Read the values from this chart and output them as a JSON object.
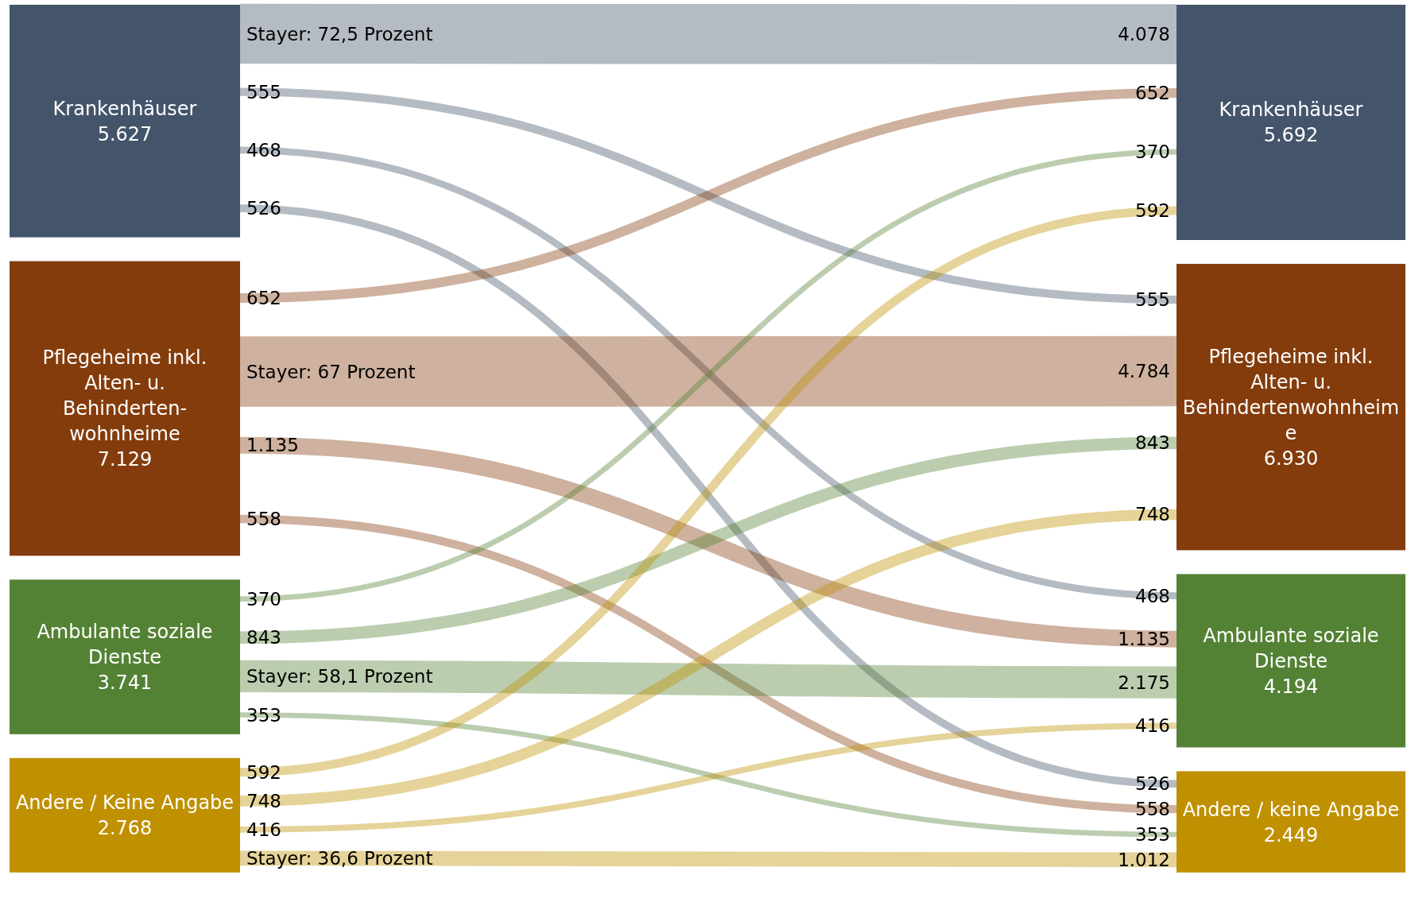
{
  "chart_data": {
    "type": "other",
    "categories": [
      "Krankenhäuser",
      "Pflegeheime inkl. Alten- u. Behindertenwohnheime",
      "Ambulante soziale Dienste",
      "Andere / keine Angabe"
    ],
    "series": [
      {
        "name": "Krankenhäuser",
        "values": [
          4078,
          555,
          468,
          526
        ],
        "value_labels": [
          "4.078",
          "555",
          "468",
          "526"
        ]
      },
      {
        "name": "Pflegeheime inkl. Alten- u. Behinderten-wohnheime",
        "values": [
          652,
          4784,
          1135,
          558
        ],
        "value_labels": [
          "652",
          "4.784",
          "1.135",
          "558"
        ]
      },
      {
        "name": "Ambulante soziale Dienste",
        "values": [
          370,
          843,
          2175,
          353
        ],
        "value_labels": [
          "370",
          "843",
          "2.175",
          "353"
        ]
      },
      {
        "name": "Andere / Keine Angabe",
        "values": [
          592,
          748,
          416,
          1012
        ],
        "value_labels": [
          "592",
          "748",
          "416",
          "1.012"
        ]
      }
    ],
    "colors": [
      "#44546a",
      "#843c0c",
      "#548235",
      "#bf9000",
      "#44546a",
      "#843c0c",
      "#548235",
      "#bf9000"
    ],
    "totals": [
      "5.627",
      "7.129",
      "3.741",
      "2.768",
      "5.692",
      "6.930",
      "4.194",
      "2.449"
    ],
    "annotations": [
      "Stayer: 72,5 Prozent",
      "Stayer: 67 Prozent",
      "Stayer: 58,1 Prozent",
      "Stayer: 36,6 Prozent"
    ]
  }
}
